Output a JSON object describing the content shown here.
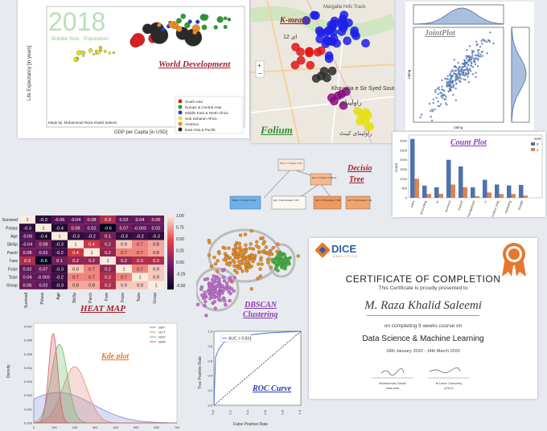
{
  "colors": {
    "background": "#e7eaee",
    "title_red": "#a0222a",
    "title_purple": "#8a3db5",
    "title_green": "#2c8c2c",
    "title_blue": "#2a3eb0",
    "title_orange": "#e07b20",
    "cert_title": "#222222",
    "cert_name": "#3a3a3a",
    "dice_orange": "#e8772e",
    "dice_blue": "#2a5fa8"
  },
  "world": {
    "title": "World Development",
    "year": "2018",
    "subtitle": "Bubble Size : Population",
    "ylabel": "Life Expectancy [in years]",
    "xlabel": "GDP per Capita [in USD]",
    "credit": "Made by: Muhammad Raza Khalid Saleem",
    "legend": [
      "South Asia",
      "Europe & Central Asia",
      "Middle East & North Africa",
      "Sub Saharan Africa",
      "America",
      "East Asia & Pacific"
    ],
    "legend_colors": [
      "#e02020",
      "#2aa02a",
      "#1f3fd0",
      "#f0e020",
      "#f08c1c",
      "#2a2a2a"
    ]
  },
  "kmeans": {
    "title": "K-means",
    "sub": "Folium",
    "map_labels": [
      "Margalla Hills Track",
      "Khayaba e Sir Syed South",
      "12 ای",
      "راولپنڈی",
      "راولپنڈی کینٹ"
    ]
  },
  "joint": {
    "title": "JointPlot",
    "xlabel": "rating",
    "ylabel": "rating"
  },
  "count": {
    "title": "Count Plot",
    "legend_title": "sent",
    "legend": [
      "0",
      "1"
    ],
    "ylabel": "count",
    "chart_data": {
      "type": "bar",
      "categories": [
        "sales",
        "accounting",
        "hr",
        "technical",
        "support",
        "management",
        "IT",
        "product_mng",
        "marketing",
        "RandD"
      ],
      "series": [
        {
          "name": "0",
          "values": [
            3100,
            640,
            550,
            2000,
            1650,
            550,
            950,
            700,
            650,
            680
          ]
        },
        {
          "name": "1",
          "values": [
            1000,
            200,
            210,
            700,
            560,
            90,
            280,
            200,
            200,
            120
          ]
        }
      ],
      "ylim": [
        0,
        3300
      ],
      "yticks": [
        "0",
        "500",
        "1000",
        "1500",
        "2000",
        "2500",
        "3000"
      ]
    }
  },
  "tree": {
    "title_line1": "Decision",
    "title_line2": "Tree",
    "nodes": [
      "Titl_In <= 0.5 gini = 0.474 samples = 712",
      "Sex <= 0.5 gini = 0.316 samples = 467",
      "Pclass <= 2.5 gini = 0.414 samples = 245",
      "gini = 0.222 samples = 137",
      "gini = 0.476 samples = 330",
      "gini = 0.114 samples = 111",
      "gini = 0.499 samples = 134"
    ]
  },
  "heatmap": {
    "title": "HEAT MAP",
    "rows": [
      "Survived",
      "Pclass",
      "Age",
      "SibSp",
      "Parch",
      "Fare",
      "Fsize",
      "Tsize",
      "Group"
    ],
    "cols": [
      "Survived",
      "Pclass",
      "Age",
      "SibSp",
      "Parch",
      "Fare",
      "Fsize",
      "Tsize",
      "Group"
    ],
    "values": [
      [
        "1",
        "-0.3",
        "-0.06",
        "-0.04",
        "0.08",
        "0.3",
        "0.02",
        "0.04",
        "0.06"
      ],
      [
        "-0.3",
        "1",
        "-0.4",
        "0.08",
        "0.02",
        "-0.6",
        "0.07",
        "-0.003",
        "0.02"
      ],
      [
        "-0.06",
        "-0.4",
        "1",
        "-0.3",
        "-0.2",
        "0.1",
        "-0.3",
        "-0.2",
        "-0.3"
      ],
      [
        "-0.04",
        "0.08",
        "-0.3",
        "1",
        "0.4",
        "0.2",
        "0.9",
        "0.7",
        "0.8"
      ],
      [
        "0.08",
        "0.02",
        "-0.2",
        "0.4",
        "1",
        "0.2",
        "0.7",
        "0.7",
        "0.8"
      ],
      [
        "0.3",
        "-0.6",
        "0.1",
        "0.2",
        "0.2",
        "1",
        "0.2",
        "0.3",
        "0.3"
      ],
      [
        "0.02",
        "0.07",
        "-0.3",
        "0.9",
        "0.7",
        "0.2",
        "1",
        "0.7",
        "0.9"
      ],
      [
        "0.04",
        "-0.003",
        "-0.2",
        "0.7",
        "0.7",
        "0.3",
        "0.7",
        "1",
        "0.9"
      ],
      [
        "0.06",
        "0.02",
        "-0.3",
        "0.8",
        "0.8",
        "0.3",
        "0.9",
        "0.9",
        "1"
      ]
    ],
    "scale": [
      "1.00",
      "0.75",
      "0.50",
      "0.25",
      "0.00",
      "-0.25",
      "-0.50"
    ]
  },
  "dbscan": {
    "title_line1": "DBSCAN",
    "title_line2": "Clustering"
  },
  "certificate": {
    "brand": "DICE",
    "brand_sub": "ANALYTICS",
    "title": "CERTIFICATE OF COMPLETION",
    "presented": "This Certificate is proudly presented to",
    "name": "M. Raza Khalid Saleemi",
    "completing": "on completing 9 weeks course on",
    "course": "Data Science & Machine Learning",
    "dates": "18th January 2020 - 14th March 2020",
    "signer1_name": "Muhammad Zubair",
    "signer1_role": "Instructor",
    "signer2_name": "M.Umer Chaudhry",
    "signer2_role": "(CEO)"
  },
  "kde": {
    "title": "Kde plot",
    "ylabel": "Density",
    "legend": [
      "SEP",
      "OCT",
      "NOV",
      "MAR"
    ],
    "legend_colors": [
      "#7f8fd6",
      "#e08a7a",
      "#6cb86c",
      "#d45a6a"
    ],
    "yticks": [
      "0.000",
      "0.001",
      "0.002",
      "0.003",
      "0.004",
      "0.005",
      "0.006",
      "0.007"
    ],
    "xticks": [
      "0",
      "100",
      "200",
      "300",
      "400",
      "500",
      "600",
      "700"
    ]
  },
  "roc": {
    "title": "ROC Curve",
    "auc": "AUC = 0.831",
    "xlabel": "False Positive Rate",
    "ylabel": "True Positive Rate",
    "ticks": [
      "0.0",
      "0.2",
      "0.4",
      "0.6",
      "0.8",
      "1.0"
    ]
  }
}
